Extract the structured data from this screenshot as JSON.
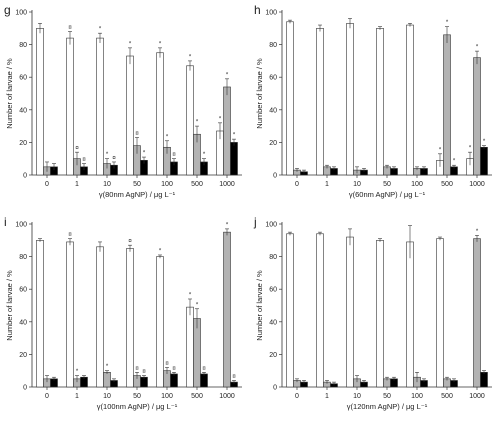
{
  "categories": [
    "0",
    "1",
    "10",
    "50",
    "100",
    "500",
    "1000"
  ],
  "yticks": [
    "0",
    "20",
    "40",
    "60",
    "80",
    "100"
  ],
  "colors": {
    "white": "#ffffff",
    "grey": "#b3b3b3",
    "black": "#000000",
    "axis": "#333333"
  },
  "chart_data": [
    {
      "type": "bar",
      "panel": "g",
      "xlabel": "γ(80nm AgNP) / μg L⁻¹",
      "ylabel": "Number of larvae / %",
      "ylim": [
        0,
        100
      ],
      "categories": [
        "0",
        "1",
        "10",
        "50",
        "100",
        "500",
        "1000"
      ],
      "series": [
        {
          "values": [
            90,
            84,
            84,
            73,
            75,
            67,
            27
          ],
          "errors": [
            3,
            4,
            3,
            5,
            3,
            3,
            5
          ]
        },
        {
          "values": [
            5,
            10,
            7,
            18,
            17,
            25,
            54
          ],
          "errors": [
            3,
            4,
            3,
            5,
            4,
            5,
            5
          ]
        },
        {
          "values": [
            5,
            5,
            6,
            9,
            8,
            8,
            20
          ],
          "errors": [
            2,
            2,
            2,
            2,
            2,
            2,
            2
          ]
        }
      ],
      "markers": [
        {
          "i": 1,
          "s": 0,
          "t": "¤"
        },
        {
          "i": 2,
          "s": 0,
          "t": "*"
        },
        {
          "i": 3,
          "s": 0,
          "t": "*"
        },
        {
          "i": 4,
          "s": 0,
          "t": "*"
        },
        {
          "i": 5,
          "s": 0,
          "t": "*"
        },
        {
          "i": 6,
          "s": 0,
          "t": "*"
        },
        {
          "i": 1,
          "s": 1,
          "t": "¤"
        },
        {
          "i": 2,
          "s": 1,
          "t": "*"
        },
        {
          "i": 3,
          "s": 1,
          "t": "¤"
        },
        {
          "i": 4,
          "s": 1,
          "t": "*"
        },
        {
          "i": 5,
          "s": 1,
          "t": "*"
        },
        {
          "i": 6,
          "s": 1,
          "t": "*"
        },
        {
          "i": 1,
          "s": 2,
          "t": "¤"
        },
        {
          "i": 2,
          "s": 2,
          "t": "¤"
        },
        {
          "i": 3,
          "s": 2,
          "t": "*"
        },
        {
          "i": 4,
          "s": 2,
          "t": "¤"
        },
        {
          "i": 5,
          "s": 2,
          "t": "*"
        },
        {
          "i": 6,
          "s": 2,
          "t": "*"
        }
      ]
    },
    {
      "type": "bar",
      "panel": "h",
      "xlabel": "γ(60nm AgNP) / μg L⁻¹",
      "ylabel": "Number of larvae / %",
      "ylim": [
        0,
        100
      ],
      "categories": [
        "0",
        "1",
        "10",
        "50",
        "100",
        "500",
        "1000"
      ],
      "series": [
        {
          "values": [
            94,
            90,
            93,
            90,
            92,
            9,
            10
          ],
          "errors": [
            1,
            2,
            3,
            1,
            1,
            4,
            4
          ]
        },
        {
          "values": [
            3,
            5,
            3,
            5,
            4,
            86,
            72
          ],
          "errors": [
            1,
            1,
            2,
            1,
            1,
            5,
            4
          ]
        },
        {
          "values": [
            2,
            4,
            3,
            4,
            4,
            5,
            17
          ],
          "errors": [
            1,
            1,
            1,
            1,
            1,
            1,
            1
          ]
        }
      ],
      "markers": [
        {
          "i": 5,
          "s": 0,
          "t": "*"
        },
        {
          "i": 6,
          "s": 0,
          "t": "*"
        },
        {
          "i": 5,
          "s": 1,
          "t": "*"
        },
        {
          "i": 6,
          "s": 1,
          "t": "*"
        },
        {
          "i": 5,
          "s": 2,
          "t": "*"
        },
        {
          "i": 6,
          "s": 2,
          "t": "*"
        }
      ]
    },
    {
      "type": "bar",
      "panel": "i",
      "xlabel": "γ(100nm AgNP) / μg L⁻¹",
      "ylabel": "Number of larvae / %",
      "ylim": [
        0,
        100
      ],
      "categories": [
        "0",
        "1",
        "10",
        "50",
        "100",
        "500",
        "1000"
      ],
      "series": [
        {
          "values": [
            90,
            89,
            86,
            85,
            80,
            49,
            0
          ],
          "errors": [
            1,
            2,
            3,
            2,
            1,
            5,
            0
          ]
        },
        {
          "values": [
            5,
            5,
            9,
            7,
            10,
            42,
            95
          ],
          "errors": [
            2,
            2,
            1,
            2,
            2,
            6,
            2
          ]
        },
        {
          "values": [
            5,
            6,
            4,
            6,
            8,
            8,
            3
          ],
          "errors": [
            1,
            1,
            1,
            1,
            1,
            1,
            1
          ]
        }
      ],
      "markers": [
        {
          "i": 1,
          "s": 0,
          "t": "¤"
        },
        {
          "i": 3,
          "s": 0,
          "t": "¤"
        },
        {
          "i": 4,
          "s": 0,
          "t": "*"
        },
        {
          "i": 5,
          "s": 0,
          "t": "*"
        },
        {
          "i": 1,
          "s": 1,
          "t": "*"
        },
        {
          "i": 2,
          "s": 1,
          "t": "*"
        },
        {
          "i": 3,
          "s": 1,
          "t": "¤"
        },
        {
          "i": 4,
          "s": 1,
          "t": "¤"
        },
        {
          "i": 5,
          "s": 1,
          "t": "*"
        },
        {
          "i": 6,
          "s": 1,
          "t": "*"
        },
        {
          "i": 3,
          "s": 2,
          "t": "¤"
        },
        {
          "i": 4,
          "s": 2,
          "t": "¤"
        },
        {
          "i": 5,
          "s": 2,
          "t": "¤"
        },
        {
          "i": 6,
          "s": 2,
          "t": "¤"
        }
      ]
    },
    {
      "type": "bar",
      "panel": "j",
      "xlabel": "γ(120nm AgNP) / μg L⁻¹",
      "ylabel": "Number of larvae / %",
      "ylim": [
        0,
        100
      ],
      "categories": [
        "0",
        "1",
        "10",
        "50",
        "100",
        "500",
        "1000"
      ],
      "series": [
        {
          "values": [
            94,
            94,
            92,
            90,
            89,
            91,
            0
          ],
          "errors": [
            1,
            1,
            5,
            1,
            10,
            1,
            0
          ]
        },
        {
          "values": [
            4,
            3,
            5,
            5,
            6,
            5,
            91
          ],
          "errors": [
            1,
            1,
            2,
            1,
            3,
            1,
            2
          ]
        },
        {
          "values": [
            3,
            2,
            3,
            5,
            4,
            4,
            9
          ],
          "errors": [
            1,
            1,
            1,
            1,
            1,
            1,
            1
          ]
        }
      ],
      "markers": [
        {
          "i": 6,
          "s": 1,
          "t": "*"
        }
      ]
    }
  ]
}
